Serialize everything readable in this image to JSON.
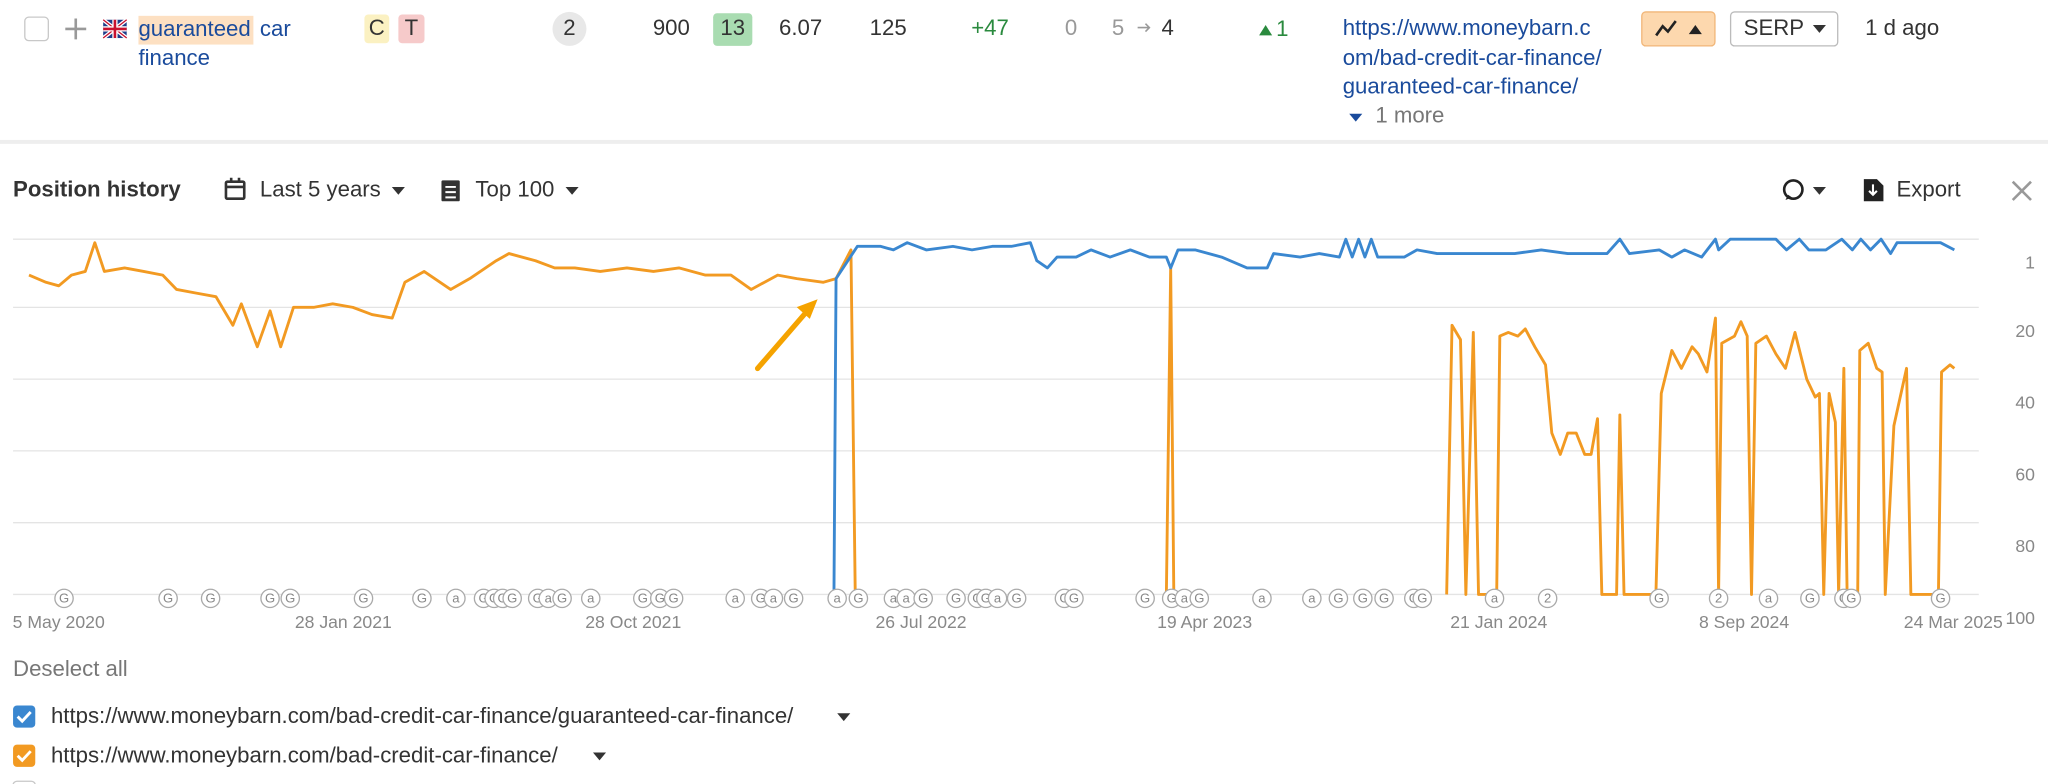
{
  "row": {
    "keyword": {
      "highlight": "guaranteed",
      "rest": [
        "car",
        "finance"
      ]
    },
    "intents": [
      "C",
      "T"
    ],
    "sf": 2,
    "volume": 900,
    "kd": 13,
    "cpc": 6.07,
    "traffic": 125,
    "traffic_change": "+47",
    "paid": 0,
    "position_from": 5,
    "position_to": 4,
    "position_change": 1,
    "url_lines": [
      "https://www.moneybarn.c",
      "om/bad-credit-car-finance/",
      "guaranteed-car-finance/"
    ],
    "more": "1 more",
    "serp": "SERP",
    "updated": "1 d ago"
  },
  "panel": {
    "title": "Position history",
    "period": "Last 5 years",
    "top": "Top 100",
    "export": "Export",
    "deselect": "Deselect all"
  },
  "chart_data": {
    "type": "line",
    "xlim": [
      "2020-03-23",
      "2025-04-17"
    ],
    "xticks": [
      {
        "value": "2020-05-05",
        "label": "5 May 2020"
      },
      {
        "value": "2021-01-28",
        "label": "28 Jan 2021"
      },
      {
        "value": "2021-10-28",
        "label": "28 Oct 2021"
      },
      {
        "value": "2022-07-26",
        "label": "26 Jul 2022"
      },
      {
        "value": "2023-04-19",
        "label": "19 Apr 2023"
      },
      {
        "value": "2024-01-21",
        "label": "21 Jan 2024"
      },
      {
        "value": "2024-09-08",
        "label": "8 Sep 2024"
      },
      {
        "value": "2025-03-24",
        "label": "24 Mar 2025"
      }
    ],
    "ylim": [
      1,
      100
    ],
    "yticks": [
      1,
      20,
      40,
      60,
      80,
      100
    ],
    "y_inverted": true,
    "grid": true,
    "series": [
      {
        "name": "https://www.moneybarn.com/bad-credit-car-finance/guaranteed-car-finance/",
        "color": "#3a87d0",
        "x": [
          "2022-05-05",
          "2022-05-07",
          "2022-05-27",
          "2022-06-18",
          "2022-06-30",
          "2022-07-13",
          "2022-07-31",
          "2022-08-25",
          "2022-09-12",
          "2022-10-01",
          "2022-10-19",
          "2022-11-06",
          "2022-11-12",
          "2022-11-22",
          "2022-12-01",
          "2022-12-19",
          "2023-01-02",
          "2023-01-20",
          "2023-02-08",
          "2023-02-26",
          "2023-03-14",
          "2023-03-18",
          "2023-03-25",
          "2023-04-10",
          "2023-05-05",
          "2023-05-29",
          "2023-06-17",
          "2023-06-23",
          "2023-07-18",
          "2023-08-05",
          "2023-08-24",
          "2023-08-30",
          "2023-09-05",
          "2023-09-11",
          "2023-09-17",
          "2023-09-23",
          "2023-09-29",
          "2023-10-24",
          "2023-11-05",
          "2023-11-24",
          "2023-12-18",
          "2024-02-05",
          "2024-03-01",
          "2024-03-26",
          "2024-05-02",
          "2024-05-14",
          "2024-05-23",
          "2024-06-20",
          "2024-07-02",
          "2024-07-14",
          "2024-07-30",
          "2024-08-12",
          "2024-08-15",
          "2024-08-26",
          "2024-10-08",
          "2024-10-18",
          "2024-10-30",
          "2024-11-08",
          "2024-11-24",
          "2024-12-09",
          "2024-12-19",
          "2024-12-27",
          "2025-01-05",
          "2025-01-15",
          "2025-01-24",
          "2025-01-30",
          "2025-03-12",
          "2025-03-25"
        ],
        "values": [
          100,
          12,
          3,
          3,
          4,
          2,
          4,
          3,
          4,
          3,
          3,
          2,
          7,
          9,
          6,
          6,
          4,
          6,
          4,
          6,
          6,
          9,
          4,
          4,
          6,
          9,
          9,
          5,
          6,
          5,
          6,
          1,
          6,
          1,
          6,
          1,
          6,
          6,
          4,
          5,
          5,
          5,
          4,
          5,
          5,
          1,
          5,
          4,
          6,
          4,
          6,
          1,
          4,
          1,
          1,
          4,
          1,
          4,
          4,
          1,
          4,
          1,
          4,
          1,
          5,
          2,
          2,
          4
        ]
      },
      {
        "name": "https://www.moneybarn.com/bad-credit-car-finance/",
        "color": "#f29a22",
        "x": [
          "2020-04-07",
          "2020-04-23",
          "2020-05-05",
          "2020-05-17",
          "2020-05-30",
          "2020-06-08",
          "2020-06-17",
          "2020-07-06",
          "2020-07-24",
          "2020-08-11",
          "2020-08-24",
          "2020-09-11",
          "2020-09-30",
          "2020-10-16",
          "2020-10-24",
          "2020-11-08",
          "2020-11-20",
          "2020-11-30",
          "2020-12-12",
          "2020-12-31",
          "2021-01-18",
          "2021-02-06",
          "2021-02-24",
          "2021-03-15",
          "2021-03-27",
          "2021-04-14",
          "2021-05-09",
          "2021-05-27",
          "2021-06-21",
          "2021-07-03",
          "2021-07-28",
          "2021-08-15",
          "2021-09-03",
          "2021-09-27",
          "2021-10-22",
          "2021-11-16",
          "2021-12-10",
          "2022-01-04",
          "2022-01-28",
          "2022-02-16",
          "2022-03-13",
          "2022-03-31",
          "2022-04-25",
          "2022-05-07",
          "2022-05-21",
          "2022-05-25",
          "2022-06-01",
          "2023-03-14",
          "2023-03-18",
          "2023-03-21",
          "2023-06-01",
          "2023-12-03",
          "2023-12-08",
          "2023-12-16",
          "2023-12-21",
          "2023-12-28",
          "2024-01-02",
          "2024-01-19",
          "2024-01-22",
          "2024-01-30",
          "2024-02-08",
          "2024-02-15",
          "2024-02-24",
          "2024-03-05",
          "2024-03-11",
          "2024-03-19",
          "2024-03-26",
          "2024-04-03",
          "2024-04-11",
          "2024-04-17",
          "2024-04-23",
          "2024-04-27",
          "2024-05-11",
          "2024-05-14",
          "2024-05-18",
          "2024-06-17",
          "2024-06-22",
          "2024-07-02",
          "2024-07-11",
          "2024-07-21",
          "2024-07-27",
          "2024-08-04",
          "2024-08-12",
          "2024-08-15",
          "2024-08-18",
          "2024-08-30",
          "2024-09-05",
          "2024-09-11",
          "2024-09-15",
          "2024-09-19",
          "2024-09-29",
          "2024-10-08",
          "2024-10-17",
          "2024-10-26",
          "2024-11-06",
          "2024-11-14",
          "2024-11-18",
          "2024-11-22",
          "2024-11-27",
          "2024-12-03",
          "2024-12-06",
          "2024-12-11",
          "2024-12-14",
          "2024-12-24",
          "2024-12-26",
          "2025-01-03",
          "2025-01-11",
          "2025-01-16",
          "2025-01-19",
          "2025-01-27",
          "2025-02-08",
          "2025-02-12",
          "2025-03-10",
          "2025-03-13",
          "2025-03-21",
          "2025-03-25"
        ],
        "values": [
          11,
          13,
          14,
          11,
          10,
          2,
          10,
          9,
          10,
          11,
          15,
          16,
          17,
          25,
          19,
          31,
          21,
          31,
          20,
          20,
          19,
          20,
          22,
          23,
          13,
          10,
          15,
          12,
          7,
          5,
          7,
          9,
          9,
          10,
          9,
          10,
          9,
          11,
          11,
          15,
          11,
          12,
          13,
          12,
          4,
          100,
          null,
          100,
          9,
          100,
          null,
          100,
          25,
          29,
          100,
          27,
          100,
          100,
          28,
          27,
          28,
          26,
          31,
          36,
          55,
          61,
          55,
          55,
          61,
          61,
          51,
          100,
          100,
          50,
          100,
          100,
          44,
          32,
          37,
          31,
          33,
          38,
          23,
          100,
          30,
          28,
          24,
          28,
          100,
          30,
          28,
          33,
          37,
          27,
          40,
          45,
          44,
          100,
          44,
          52,
          100,
          37,
          100,
          100,
          32,
          30,
          37,
          38,
          100,
          53,
          37,
          100,
          100,
          38,
          36,
          37
        ]
      }
    ],
    "events": [
      {
        "date": "2020-05-10",
        "label": "G"
      },
      {
        "date": "2020-08-16",
        "label": "G"
      },
      {
        "date": "2020-09-25",
        "label": "G"
      },
      {
        "date": "2020-11-20",
        "label": "G"
      },
      {
        "date": "2020-12-09",
        "label": "G"
      },
      {
        "date": "2021-02-16",
        "label": "G"
      },
      {
        "date": "2021-04-12",
        "label": "G"
      },
      {
        "date": "2021-05-14",
        "label": "a"
      },
      {
        "date": "2021-06-09",
        "label": "G"
      },
      {
        "date": "2021-06-19",
        "label": "G"
      },
      {
        "date": "2021-06-27",
        "label": "G"
      },
      {
        "date": "2021-07-06",
        "label": "G"
      },
      {
        "date": "2021-07-30",
        "label": "G"
      },
      {
        "date": "2021-08-09",
        "label": "a"
      },
      {
        "date": "2021-08-22",
        "label": "G"
      },
      {
        "date": "2021-09-18",
        "label": "a"
      },
      {
        "date": "2021-11-06",
        "label": "G"
      },
      {
        "date": "2021-11-22",
        "label": "G"
      },
      {
        "date": "2021-12-05",
        "label": "G"
      },
      {
        "date": "2022-02-01",
        "label": "a"
      },
      {
        "date": "2022-02-25",
        "label": "G"
      },
      {
        "date": "2022-03-09",
        "label": "a"
      },
      {
        "date": "2022-03-28",
        "label": "G"
      },
      {
        "date": "2022-05-08",
        "label": "a"
      },
      {
        "date": "2022-05-28",
        "label": "G"
      },
      {
        "date": "2022-06-30",
        "label": "a"
      },
      {
        "date": "2022-07-12",
        "label": "a"
      },
      {
        "date": "2022-07-28",
        "label": "G"
      },
      {
        "date": "2022-08-28",
        "label": "G"
      },
      {
        "date": "2022-09-17",
        "label": "G"
      },
      {
        "date": "2022-09-25",
        "label": "G"
      },
      {
        "date": "2022-10-06",
        "label": "a"
      },
      {
        "date": "2022-10-24",
        "label": "G"
      },
      {
        "date": "2022-12-08",
        "label": "G"
      },
      {
        "date": "2022-12-17",
        "label": "G"
      },
      {
        "date": "2023-02-22",
        "label": "G"
      },
      {
        "date": "2023-03-19",
        "label": "G"
      },
      {
        "date": "2023-03-31",
        "label": "a"
      },
      {
        "date": "2023-04-14",
        "label": "G"
      },
      {
        "date": "2023-06-12",
        "label": "a"
      },
      {
        "date": "2023-07-29",
        "label": "a"
      },
      {
        "date": "2023-08-23",
        "label": "G"
      },
      {
        "date": "2023-09-15",
        "label": "G"
      },
      {
        "date": "2023-10-05",
        "label": "G"
      },
      {
        "date": "2023-11-02",
        "label": "G"
      },
      {
        "date": "2023-11-10",
        "label": "G"
      },
      {
        "date": "2024-01-17",
        "label": "a"
      },
      {
        "date": "2024-03-07",
        "label": "2"
      },
      {
        "date": "2024-06-20",
        "label": "G"
      },
      {
        "date": "2024-08-15",
        "label": "2"
      },
      {
        "date": "2024-10-01",
        "label": "a"
      },
      {
        "date": "2024-11-09",
        "label": "G"
      },
      {
        "date": "2024-12-11",
        "label": "G"
      },
      {
        "date": "2024-12-18",
        "label": "G"
      },
      {
        "date": "2025-03-12",
        "label": "G"
      }
    ]
  }
}
